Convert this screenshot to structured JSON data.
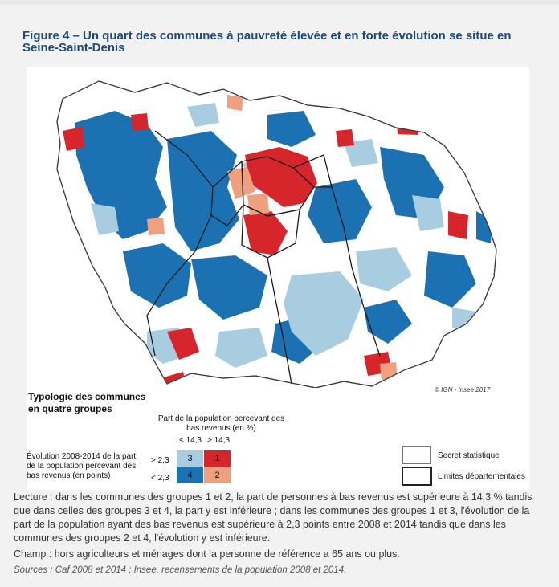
{
  "figure": {
    "title": "Figure 4 – Un quart des communes à pauvreté élevée et en forte évolution se situe en Seine-Saint-Denis",
    "copyright": "© IGN - Insee 2017"
  },
  "map": {
    "colors": {
      "group1": "#d7262b",
      "group2": "#f0a07f",
      "group3": "#a9cde0",
      "group4": "#1c71b3",
      "secret": "#ffffff",
      "boundary": "#1a1a1a"
    }
  },
  "legend": {
    "typology_title": "Typologie des communes en quatre groupes",
    "column_header": "Part de la population percevant des bas revenus (en %)",
    "col_low": "< 14,3",
    "col_high": "> 14,3",
    "row_caption": "Évolution 2008-2014 de la part de la population percevant des bas revenus (en points)",
    "row_high": "> 2,3",
    "row_low": "< 2,3",
    "groups": [
      {
        "id": "3",
        "label": "3",
        "color": "#a9cde0"
      },
      {
        "id": "1",
        "label": "1",
        "color": "#d7262b"
      },
      {
        "id": "4",
        "label": "4",
        "color": "#1c71b3"
      },
      {
        "id": "2",
        "label": "2",
        "color": "#f0a07f"
      }
    ],
    "secret_label": "Secret statistique",
    "limits_label": "Limites départementales"
  },
  "notes": {
    "lecture": "Lecture : dans les communes des groupes 1 et 2, la part de personnes à bas revenus est supérieure à 14,3 % tandis que dans celles des groupes 3 et 4, la part y est inférieure ; dans les communes des groupes 1 et 3, l'évolution de la part de la population ayant des bas revenus est supérieure à 2,3 points entre 2008 et 2014 tandis que dans les communes des groupes 2 et 4, l'évolution y est inférieure.",
    "champ": "Champ : hors agriculteurs et ménages dont la personne de référence a 65 ans ou plus.",
    "sources": "Sources : Caf 2008 et 2014 ; Insee, recensements de la population 2008 et 2014."
  }
}
